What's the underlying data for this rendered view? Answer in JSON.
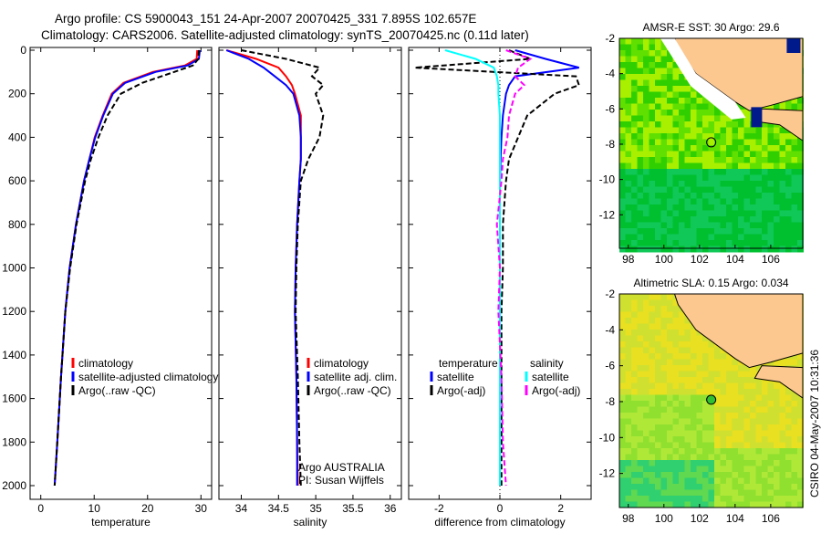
{
  "title": {
    "line1": "Argo profile: CS 5900043_151 24-Apr-2007 20070425_331 7.895S 102.657E",
    "line2": "Climatology: CARS2006. Satellite-adjusted climatology: synTS_20070425.nc (0.11d later)"
  },
  "side_label": "CSIRO 04-May-2007 10:31:36",
  "chart_data": [
    {
      "type": "line",
      "id": "temperature",
      "xlabel": "temperature",
      "ylabel": "",
      "xlim": [
        -2,
        32
      ],
      "ylim": [
        0,
        2050
      ],
      "xticks": [
        "0",
        "10",
        "20",
        "30"
      ],
      "xtick_values": [
        0,
        10,
        20,
        30
      ],
      "yticks": [
        "0",
        "200",
        "400",
        "600",
        "800",
        "1000",
        "1200",
        "1400",
        "1600",
        "1800",
        "2000"
      ],
      "ytick_values": [
        0,
        200,
        400,
        600,
        800,
        1000,
        1200,
        1400,
        1600,
        1800,
        2000
      ],
      "legend": [
        "climatology",
        "satellite-adjusted climatology",
        "Argo(..raw -QC)"
      ],
      "depth": [
        0,
        40,
        70,
        100,
        150,
        200,
        300,
        400,
        500,
        600,
        800,
        1000,
        1200,
        1500,
        1800,
        2000
      ],
      "series": [
        {
          "name": "climatology",
          "color": "#ff0000",
          "values": [
            29.3,
            29.2,
            27,
            21,
            15.5,
            13.3,
            11.6,
            10.1,
            9.1,
            8.1,
            6.6,
            5.4,
            4.6,
            3.8,
            3.1,
            2.6
          ]
        },
        {
          "name": "satellite-adjusted climatology",
          "color": "#0000ff",
          "values": [
            29.8,
            29.6,
            27.5,
            21.5,
            15.8,
            13.5,
            11.7,
            10.2,
            9.1,
            8.1,
            6.6,
            5.4,
            4.6,
            3.8,
            3.1,
            2.6
          ]
        },
        {
          "name": "Argo(..raw -QC)",
          "color": "#000000",
          "values": [
            29.6,
            29.5,
            28.5,
            25,
            19,
            15,
            12.5,
            10.8,
            9.4,
            8.3,
            6.7,
            5.5,
            4.6,
            3.8,
            3.1,
            2.6
          ]
        }
      ]
    },
    {
      "type": "line",
      "id": "salinity",
      "xlabel": "salinity",
      "xlim": [
        33.7,
        36.15
      ],
      "ylim": [
        0,
        2050
      ],
      "xticks": [
        "34",
        "34.5",
        "35",
        "35.5",
        "36"
      ],
      "xtick_values": [
        34,
        34.5,
        35,
        35.5,
        36
      ],
      "legend": [
        "climatology",
        "satellite adj. clim.",
        "Argo(..raw -QC)"
      ],
      "annotation": [
        "Argo AUSTRALIA",
        "PI: Susan Wijffels"
      ],
      "depth": [
        0,
        40,
        80,
        120,
        160,
        200,
        300,
        400,
        500,
        600,
        800,
        1000,
        1200,
        1500,
        1800,
        2000
      ],
      "series": [
        {
          "name": "climatology",
          "color": "#ff0000",
          "values": [
            33.8,
            34.2,
            34.5,
            34.6,
            34.68,
            34.72,
            34.8,
            34.8,
            34.8,
            34.78,
            34.75,
            34.73,
            34.72,
            34.74,
            34.75,
            34.76
          ]
        },
        {
          "name": "satellite adj. clim.",
          "color": "#0000ff",
          "values": [
            33.8,
            34.1,
            34.3,
            34.45,
            34.6,
            34.7,
            34.78,
            34.8,
            34.8,
            34.78,
            34.75,
            34.73,
            34.72,
            34.74,
            34.75,
            34.75
          ]
        },
        {
          "name": "Argo(..raw -QC)",
          "color": "#000000",
          "values": [
            34.0,
            34.6,
            35.05,
            34.95,
            35.1,
            35.0,
            35.1,
            35.05,
            34.9,
            34.8,
            34.76,
            34.74,
            34.73,
            34.76,
            34.78,
            34.8
          ]
        }
      ]
    },
    {
      "type": "line",
      "id": "difference",
      "xlabel": "difference from climatology",
      "xlim": [
        -3,
        3
      ],
      "ylim": [
        0,
        2050
      ],
      "xticks": [
        "-2",
        "0",
        "2"
      ],
      "xtick_values": [
        -2,
        0,
        2
      ],
      "legend_headers": [
        "temperature",
        "salinity"
      ],
      "legend": [
        "satellite",
        "Argo(-adj)",
        "satellite",
        "Argo(-adj)"
      ],
      "depth": [
        0,
        40,
        80,
        120,
        160,
        200,
        300,
        400,
        500,
        600,
        800,
        1000,
        1200,
        1500,
        1800,
        2000
      ],
      "series": [
        {
          "name": "temperature satellite",
          "color": "#0000ff",
          "values": [
            0.5,
            1.5,
            2.6,
            0.5,
            0.3,
            0.2,
            0.1,
            0.05,
            0.02,
            0,
            0,
            0,
            0,
            0,
            0,
            0
          ]
        },
        {
          "name": "temperature Argo(-adj)",
          "color": "#000000",
          "values": [
            0.3,
            1.0,
            -2.8,
            2.5,
            2.6,
            1.8,
            0.9,
            0.6,
            0.3,
            0.2,
            0.1,
            0.1,
            0.05,
            0.05,
            0.05,
            0.05
          ]
        },
        {
          "name": "salinity satellite",
          "color": "#00ffff",
          "values": [
            -1.8,
            -0.8,
            -0.2,
            -0.1,
            -0.05,
            -0.05,
            0,
            0,
            0,
            0,
            0,
            0,
            0,
            0,
            0,
            0
          ]
        },
        {
          "name": "salinity Argo(-adj)",
          "color": "#ff00ff",
          "values": [
            0.2,
            1.0,
            0.6,
            0.5,
            0.8,
            0.5,
            0.3,
            0.25,
            0.1,
            0.05,
            -0.1,
            0,
            -0.05,
            0.05,
            0.1,
            0.2
          ]
        }
      ]
    },
    {
      "type": "heatmap",
      "id": "sst-map",
      "title": "AMSR-E SST: 30 Argo: 29.6",
      "xticks": [
        "98",
        "100",
        "102",
        "104",
        "106"
      ],
      "xtick_values": [
        98,
        100,
        102,
        104,
        106
      ],
      "yticks": [
        "-2",
        "-4",
        "-6",
        "-8",
        "-10",
        "-12"
      ],
      "ytick_values": [
        -2,
        -4,
        -6,
        -8,
        -10,
        -12
      ],
      "xlim": [
        97.5,
        107.8
      ],
      "ylim": [
        -13.9,
        -2
      ],
      "marker": {
        "lon": 102.657,
        "lat": -7.895
      }
    },
    {
      "type": "heatmap",
      "id": "sla-map",
      "title": "Altimetric SLA: 0.15 Argo: 0.034",
      "xticks": [
        "98",
        "100",
        "102",
        "104",
        "106"
      ],
      "xtick_values": [
        98,
        100,
        102,
        104,
        106
      ],
      "yticks": [
        "-2",
        "-4",
        "-6",
        "-8",
        "-10",
        "-12"
      ],
      "ytick_values": [
        -2,
        -4,
        -6,
        -8,
        -10,
        -12
      ],
      "xlim": [
        97.5,
        107.8
      ],
      "ylim": [
        -13.9,
        -2
      ],
      "marker": {
        "lon": 102.657,
        "lat": -7.895
      }
    }
  ]
}
